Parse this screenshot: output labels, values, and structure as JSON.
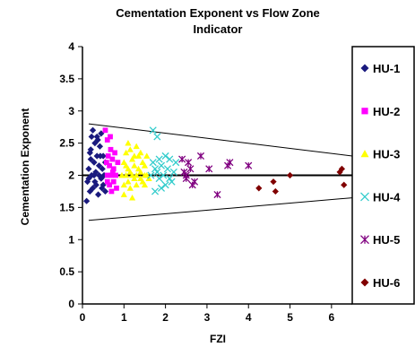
{
  "chart_data": {
    "type": "scatter",
    "title_lines": [
      "Cementation Exponent vs Flow Zone",
      "Indicator"
    ],
    "xlabel": "FZI",
    "ylabel": "Cementation Exponent",
    "xlim": [
      0,
      6.5
    ],
    "ylim": [
      0,
      4
    ],
    "x_ticks": [
      0,
      1,
      2,
      3,
      4,
      5,
      6
    ],
    "y_ticks": [
      0,
      0.5,
      1,
      1.5,
      2,
      2.5,
      3,
      3.5,
      4
    ],
    "y_tick_labels": [
      "0",
      "0.5",
      "1",
      "1.5",
      "2",
      "2.5",
      "3",
      "3.5",
      "4"
    ],
    "grid": false,
    "legend_position": "right",
    "reference_lines": [
      {
        "name": "mean",
        "points": [
          [
            0,
            2.0
          ],
          [
            6.5,
            2.0
          ]
        ],
        "color": "#000000",
        "width": 2
      },
      {
        "name": "upper-bound",
        "points": [
          [
            0.15,
            2.8
          ],
          [
            6.5,
            2.3
          ]
        ],
        "color": "#000000",
        "width": 1
      },
      {
        "name": "lower-bound",
        "points": [
          [
            0.15,
            1.3
          ],
          [
            6.5,
            1.65
          ]
        ],
        "color": "#000000",
        "width": 1
      }
    ],
    "series": [
      {
        "name": "HU-1",
        "marker": "diamond",
        "color": "#1a1a7e",
        "points": [
          [
            0.1,
            1.6
          ],
          [
            0.12,
            1.9
          ],
          [
            0.15,
            2.1
          ],
          [
            0.18,
            1.75
          ],
          [
            0.2,
            2.4
          ],
          [
            0.22,
            2.0
          ],
          [
            0.25,
            2.7
          ],
          [
            0.25,
            1.8
          ],
          [
            0.28,
            2.2
          ],
          [
            0.3,
            2.5
          ],
          [
            0.3,
            1.9
          ],
          [
            0.32,
            2.05
          ],
          [
            0.35,
            2.6
          ],
          [
            0.35,
            2.3
          ],
          [
            0.38,
            1.7
          ],
          [
            0.4,
            2.0
          ],
          [
            0.4,
            2.15
          ],
          [
            0.42,
            2.45
          ],
          [
            0.45,
            1.95
          ],
          [
            0.45,
            2.65
          ],
          [
            0.48,
            2.1
          ],
          [
            0.5,
            1.85
          ],
          [
            0.5,
            2.3
          ],
          [
            0.52,
            2.0
          ],
          [
            0.55,
            2.2
          ],
          [
            0.55,
            1.75
          ],
          [
            0.15,
            1.95
          ],
          [
            0.2,
            2.25
          ],
          [
            0.28,
            2.0
          ],
          [
            0.33,
            1.85
          ],
          [
            0.43,
            2.3
          ],
          [
            0.47,
            1.8
          ],
          [
            0.22,
            2.6
          ],
          [
            0.37,
            2.55
          ],
          [
            0.18,
            2.35
          ]
        ]
      },
      {
        "name": "HU-2",
        "marker": "square",
        "color": "#ff00ff",
        "points": [
          [
            0.55,
            2.7
          ],
          [
            0.6,
            2.55
          ],
          [
            0.6,
            2.0
          ],
          [
            0.62,
            2.3
          ],
          [
            0.65,
            1.85
          ],
          [
            0.65,
            2.15
          ],
          [
            0.68,
            2.4
          ],
          [
            0.7,
            2.0
          ],
          [
            0.7,
            1.75
          ],
          [
            0.72,
            2.25
          ],
          [
            0.75,
            2.1
          ],
          [
            0.75,
            1.9
          ],
          [
            0.78,
            2.35
          ],
          [
            0.8,
            2.0
          ],
          [
            0.82,
            1.8
          ],
          [
            0.85,
            2.2
          ],
          [
            0.6,
            1.9
          ],
          [
            0.67,
            2.6
          ],
          [
            0.73,
            2.05
          ],
          [
            0.58,
            2.2
          ]
        ]
      },
      {
        "name": "HU-3",
        "marker": "triangle",
        "color": "#ffff00",
        "points": [
          [
            0.95,
            2.0
          ],
          [
            1.0,
            2.2
          ],
          [
            1.0,
            1.85
          ],
          [
            1.05,
            2.35
          ],
          [
            1.05,
            2.0
          ],
          [
            1.1,
            1.9
          ],
          [
            1.1,
            2.1
          ],
          [
            1.15,
            2.4
          ],
          [
            1.15,
            1.8
          ],
          [
            1.2,
            2.0
          ],
          [
            1.2,
            2.25
          ],
          [
            1.25,
            1.95
          ],
          [
            1.25,
            2.15
          ],
          [
            1.3,
            2.0
          ],
          [
            1.3,
            1.85
          ],
          [
            1.35,
            2.1
          ],
          [
            1.35,
            2.3
          ],
          [
            1.4,
            1.95
          ],
          [
            1.4,
            2.05
          ],
          [
            1.45,
            2.2
          ],
          [
            1.45,
            1.9
          ],
          [
            1.5,
            2.0
          ],
          [
            1.5,
            2.15
          ],
          [
            1.55,
            2.3
          ],
          [
            1.55,
            2.0
          ],
          [
            1.6,
            1.95
          ],
          [
            1.0,
            1.7
          ],
          [
            1.1,
            2.5
          ],
          [
            1.2,
            1.65
          ],
          [
            1.3,
            2.45
          ],
          [
            1.15,
            2.05
          ],
          [
            1.25,
            2.3
          ],
          [
            1.05,
            2.15
          ],
          [
            1.4,
            2.35
          ],
          [
            1.5,
            1.85
          ]
        ]
      },
      {
        "name": "HU-4",
        "marker": "x",
        "color": "#33cccc",
        "points": [
          [
            1.65,
            2.0
          ],
          [
            1.7,
            2.7
          ],
          [
            1.7,
            2.2
          ],
          [
            1.75,
            1.75
          ],
          [
            1.8,
            2.6
          ],
          [
            1.8,
            2.05
          ],
          [
            1.85,
            2.25
          ],
          [
            1.9,
            1.8
          ],
          [
            1.9,
            2.15
          ],
          [
            1.95,
            2.0
          ],
          [
            2.0,
            2.3
          ],
          [
            2.0,
            1.85
          ],
          [
            2.05,
            2.1
          ],
          [
            2.1,
            1.95
          ],
          [
            2.1,
            2.25
          ],
          [
            2.15,
            1.9
          ],
          [
            2.2,
            2.05
          ],
          [
            2.25,
            2.2
          ],
          [
            1.75,
            2.1
          ],
          [
            1.85,
            1.95
          ]
        ]
      },
      {
        "name": "HU-5",
        "marker": "star",
        "color": "#800080",
        "points": [
          [
            2.4,
            2.25
          ],
          [
            2.45,
            2.05
          ],
          [
            2.5,
            1.95
          ],
          [
            2.55,
            2.2
          ],
          [
            2.6,
            2.1
          ],
          [
            2.65,
            1.85
          ],
          [
            2.85,
            2.3
          ],
          [
            3.05,
            2.1
          ],
          [
            3.25,
            1.7
          ],
          [
            3.5,
            2.15
          ],
          [
            3.55,
            2.2
          ],
          [
            4.0,
            2.15
          ],
          [
            2.5,
            2.0
          ],
          [
            2.7,
            1.9
          ]
        ]
      },
      {
        "name": "HU-6",
        "marker": "diamond",
        "color": "#800000",
        "points": [
          [
            4.25,
            1.8
          ],
          [
            4.6,
            1.9
          ],
          [
            4.65,
            1.75
          ],
          [
            5.0,
            2.0
          ],
          [
            6.2,
            2.05
          ],
          [
            6.3,
            1.85
          ],
          [
            6.25,
            2.1
          ]
        ]
      }
    ]
  }
}
